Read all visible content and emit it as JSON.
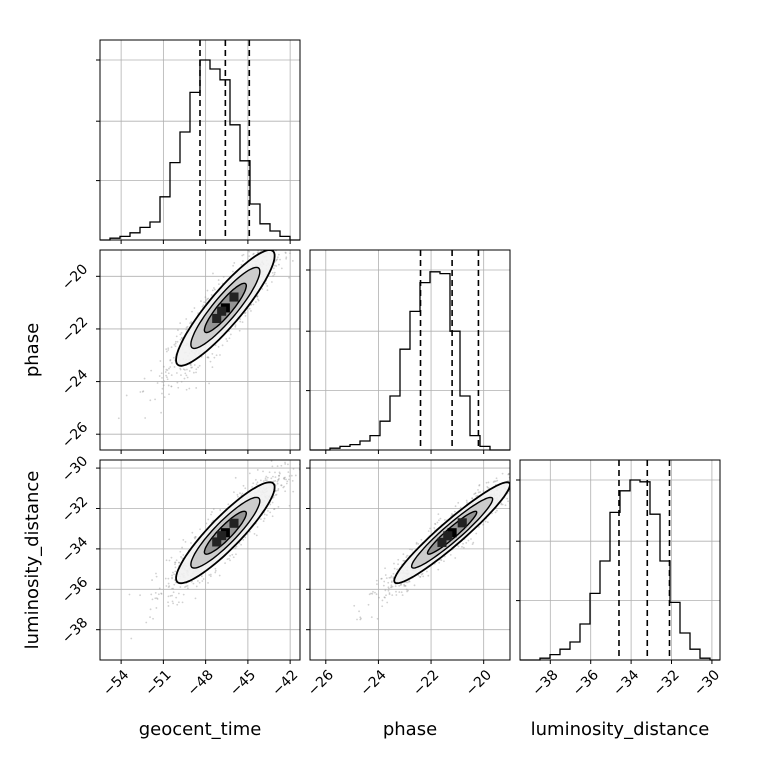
{
  "chart_data": {
    "type": "corner",
    "parameters": [
      "geocent_time",
      "phase",
      "luminosity_distance"
    ],
    "labels": {
      "x": [
        "geocent_time",
        "phase",
        "luminosity_distance"
      ],
      "y": [
        "",
        "phase",
        "luminosity_distance"
      ]
    },
    "ranges": {
      "geocent_time": [
        -55.5,
        -41.3
      ],
      "phase": [
        -26.6,
        -19.0
      ],
      "luminosity_distance": [
        -39.5,
        -29.6
      ]
    },
    "ticks": {
      "geocent_time": {
        "values": [
          -54,
          -51,
          -48,
          -45,
          -42
        ],
        "labels": [
          "−54",
          "−51",
          "−48",
          "−45",
          "−42"
        ]
      },
      "phase": {
        "values": [
          -26,
          -24,
          -22,
          -20
        ],
        "labels": [
          "−26",
          "−24",
          "−22",
          "−20"
        ]
      },
      "luminosity_distance": {
        "values": [
          -38,
          -36,
          -34,
          -32,
          -30
        ],
        "labels": [
          "−38",
          "−36",
          "−34",
          "−32",
          "−30"
        ]
      }
    },
    "quantiles": {
      "geocent_time": [
        -48.4,
        -46.6,
        -44.9
      ],
      "phase": [
        -22.4,
        -21.2,
        -20.2
      ],
      "luminosity_distance": [
        -34.6,
        -33.2,
        -32.1
      ]
    },
    "histograms": {
      "geocent_time": [
        0,
        0.01,
        0.02,
        0.04,
        0.07,
        0.1,
        0.24,
        0.43,
        0.6,
        0.82,
        1.0,
        0.95,
        0.89,
        0.64,
        0.44,
        0.2,
        0.09,
        0.05,
        0.02,
        0
      ],
      "phase": [
        0,
        0,
        0.01,
        0.02,
        0.03,
        0.05,
        0.08,
        0.16,
        0.3,
        0.56,
        0.77,
        0.93,
        0.99,
        0.98,
        0.66,
        0.3,
        0.08,
        0.02,
        0,
        0
      ],
      "luminosity_distance": [
        0,
        0,
        0.01,
        0.03,
        0.06,
        0.1,
        0.2,
        0.37,
        0.55,
        0.82,
        0.94,
        1.0,
        0.99,
        0.81,
        0.55,
        0.32,
        0.15,
        0.06,
        0.01,
        0
      ]
    },
    "correlations": {
      "phase|geocent_time": 0.9,
      "luminosity_distance|geocent_time": 0.9,
      "luminosity_distance|phase": 0.95
    },
    "grid": true,
    "colors": {
      "line": "#000000",
      "scatter": "#9a9a9a",
      "grid": "#b0b0b0",
      "background": "#ffffff"
    }
  }
}
